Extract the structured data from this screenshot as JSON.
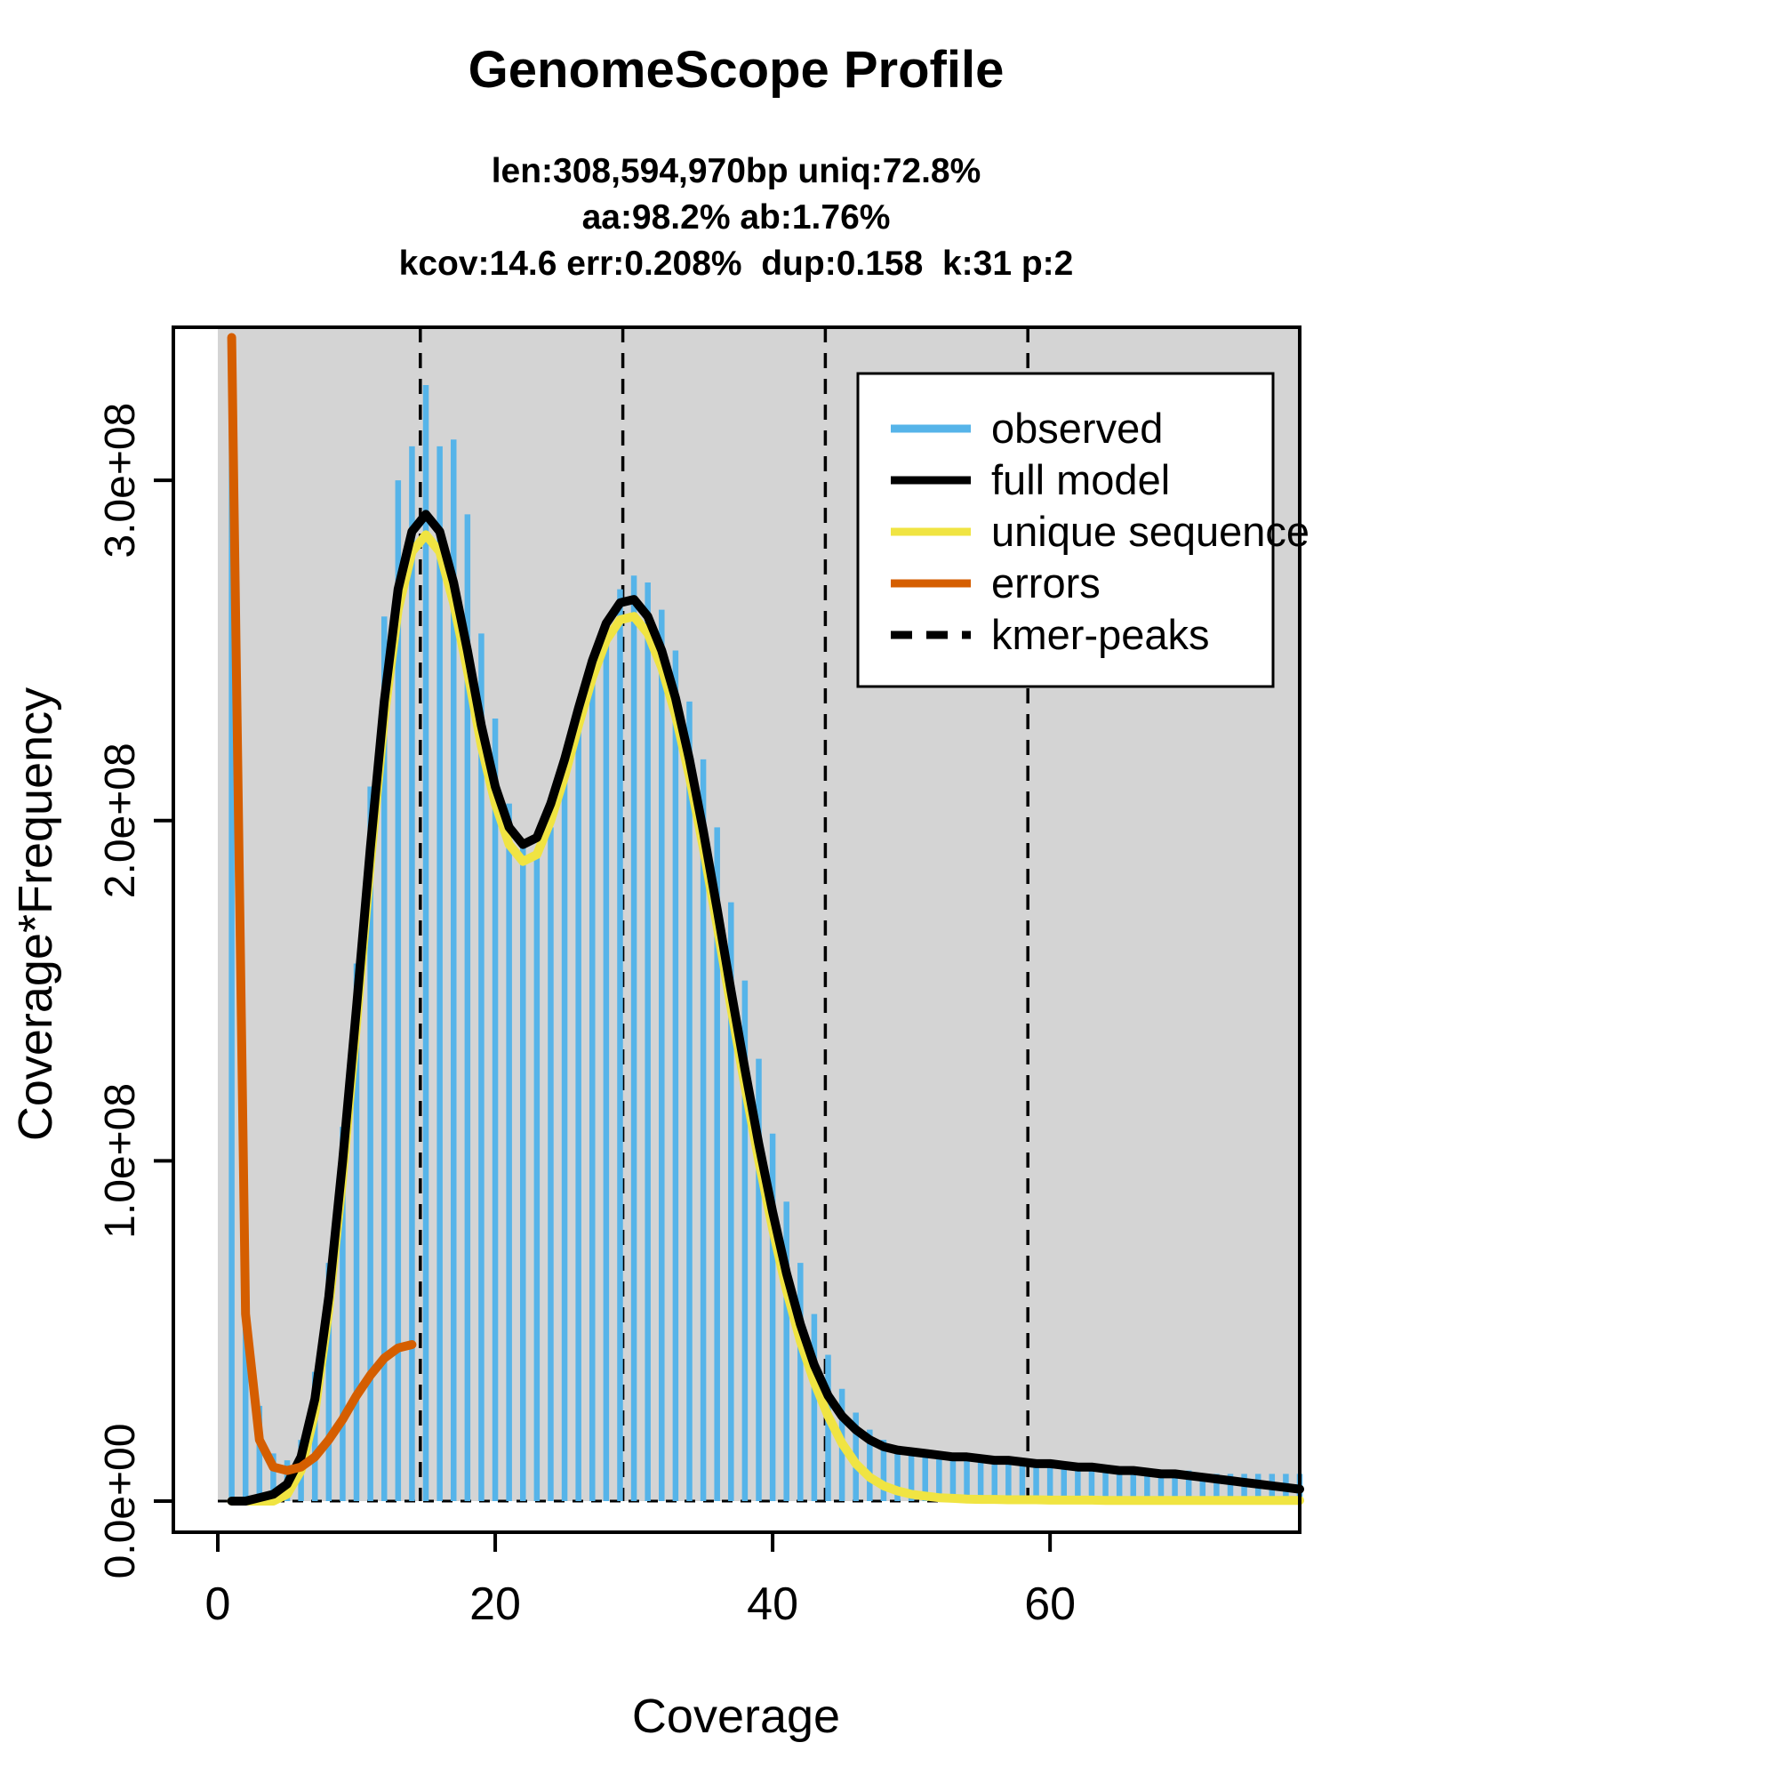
{
  "chart_data": {
    "type": "bar",
    "subtype": "kmer-histogram-with-model-lines",
    "title": "GenomeScope Profile",
    "subtitle_lines": [
      "len:308,594,970bp uniq:72.8%",
      "aa:98.2% ab:1.76%",
      "kcov:14.6 err:0.208%  dup:0.158  k:31 p:2"
    ],
    "xlabel": "Coverage",
    "ylabel": "Coverage*Frequency",
    "xlim": [
      0,
      78
    ],
    "ylim": [
      0,
      345000000
    ],
    "x_ticks": [
      0,
      20,
      40,
      60
    ],
    "y_ticks": [
      0,
      100000000,
      200000000,
      300000000
    ],
    "y_tick_labels": [
      "0.0e+00",
      "1.0e+08",
      "2.0e+08",
      "3.0e+08"
    ],
    "grid": false,
    "plot_bg": "#D4D4D4",
    "y_unit": 100000000,
    "kmer_peaks": [
      14.6,
      29.2,
      43.8,
      58.4
    ],
    "legend": {
      "position": "top-right",
      "entries": [
        {
          "label": "observed",
          "color": "#56B4E9",
          "style": "solid"
        },
        {
          "label": "full model",
          "color": "#000000",
          "style": "solid"
        },
        {
          "label": "unique sequence",
          "color": "#F0E442",
          "style": "solid"
        },
        {
          "label": "errors",
          "color": "#D55E00",
          "style": "solid"
        },
        {
          "label": "kmer-peaks",
          "color": "#000000",
          "style": "dashed"
        }
      ]
    },
    "series": {
      "observed": {
        "kind": "bars",
        "color": "#56B4E9",
        "x": {
          "from": 1,
          "to": 78,
          "step": 1
        },
        "y": [
          3.4,
          0.75,
          0.28,
          0.14,
          0.12,
          0.18,
          0.38,
          0.7,
          1.1,
          1.58,
          2.1,
          2.6,
          3.0,
          3.1,
          3.28,
          3.1,
          3.12,
          2.9,
          2.55,
          2.3,
          2.05,
          1.92,
          1.9,
          1.98,
          2.12,
          2.28,
          2.45,
          2.58,
          2.68,
          2.72,
          2.7,
          2.62,
          2.5,
          2.35,
          2.18,
          1.98,
          1.76,
          1.53,
          1.3,
          1.08,
          0.88,
          0.7,
          0.55,
          0.43,
          0.33,
          0.26,
          0.21,
          0.18,
          0.16,
          0.15,
          0.14,
          0.13,
          0.13,
          0.12,
          0.12,
          0.12,
          0.11,
          0.11,
          0.11,
          0.11,
          0.1,
          0.1,
          0.1,
          0.1,
          0.1,
          0.09,
          0.09,
          0.09,
          0.09,
          0.09,
          0.08,
          0.08,
          0.08,
          0.08,
          0.08,
          0.08,
          0.08,
          0.08
        ]
      },
      "full_model": {
        "kind": "line",
        "color": "#000000",
        "x": {
          "from": 1,
          "to": 78,
          "step": 1
        },
        "y": [
          0,
          0,
          0.01,
          0.02,
          0.05,
          0.13,
          0.3,
          0.6,
          1.0,
          1.45,
          1.92,
          2.35,
          2.68,
          2.85,
          2.9,
          2.85,
          2.7,
          2.5,
          2.28,
          2.1,
          1.98,
          1.93,
          1.95,
          2.05,
          2.18,
          2.33,
          2.47,
          2.58,
          2.64,
          2.65,
          2.6,
          2.5,
          2.36,
          2.18,
          1.97,
          1.74,
          1.5,
          1.27,
          1.05,
          0.85,
          0.67,
          0.52,
          0.4,
          0.31,
          0.25,
          0.21,
          0.18,
          0.16,
          0.15,
          0.145,
          0.14,
          0.135,
          0.13,
          0.13,
          0.125,
          0.12,
          0.12,
          0.115,
          0.11,
          0.11,
          0.105,
          0.1,
          0.1,
          0.095,
          0.09,
          0.09,
          0.085,
          0.08,
          0.08,
          0.075,
          0.07,
          0.065,
          0.06,
          0.055,
          0.05,
          0.045,
          0.04,
          0.035
        ]
      },
      "unique_sequence": {
        "kind": "line",
        "color": "#F0E442",
        "x": {
          "from": 1,
          "to": 78,
          "step": 1
        },
        "y": [
          0,
          0,
          0,
          0,
          0.02,
          0.09,
          0.26,
          0.56,
          0.95,
          1.4,
          1.87,
          2.3,
          2.62,
          2.79,
          2.84,
          2.79,
          2.64,
          2.44,
          2.22,
          2.05,
          1.93,
          1.88,
          1.9,
          2.0,
          2.13,
          2.28,
          2.42,
          2.53,
          2.59,
          2.6,
          2.55,
          2.45,
          2.31,
          2.13,
          1.92,
          1.69,
          1.45,
          1.22,
          1.0,
          0.8,
          0.62,
          0.47,
          0.35,
          0.25,
          0.17,
          0.11,
          0.07,
          0.045,
          0.03,
          0.02,
          0.015,
          0.01,
          0.008,
          0.006,
          0.005,
          0.005,
          0.004,
          0.004,
          0.004,
          0.003,
          0.003,
          0.003,
          0.003,
          0.002,
          0.002,
          0.002,
          0.002,
          0.002,
          0.002,
          0.002,
          0.002,
          0.002,
          0.002,
          0.002,
          0.002,
          0.002,
          0.002,
          0.002
        ]
      },
      "errors": {
        "kind": "line",
        "color": "#D55E00",
        "x": [
          1,
          2,
          3,
          4,
          5,
          6,
          7,
          8,
          9,
          10,
          11,
          12,
          13,
          14
        ],
        "y": [
          3.42,
          0.55,
          0.18,
          0.1,
          0.09,
          0.1,
          0.13,
          0.18,
          0.24,
          0.31,
          0.37,
          0.42,
          0.45,
          0.46
        ]
      }
    }
  }
}
